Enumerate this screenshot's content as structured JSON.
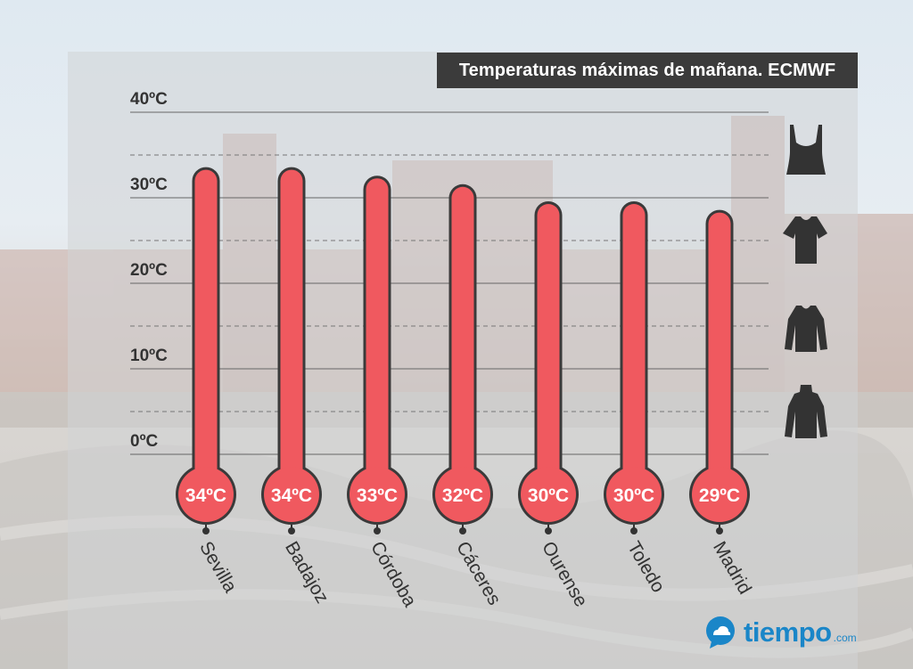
{
  "chart_data": {
    "type": "bar",
    "title": "Temperaturas máximas de mañana. ECMWF",
    "categories": [
      "Sevilla",
      "Badajoz",
      "Córdoba",
      "Cáceres",
      "Ourense",
      "Toledo",
      "Madrid"
    ],
    "values": [
      34,
      34,
      33,
      32,
      30,
      30,
      29
    ],
    "value_labels": [
      "34ºC",
      "34ºC",
      "33ºC",
      "32ºC",
      "30ºC",
      "30ºC",
      "29ºC"
    ],
    "yticks": [
      40,
      30,
      20,
      10,
      0
    ],
    "ytick_labels": [
      "40ºC",
      "30ºC",
      "20ºC",
      "10ºC",
      "0ºC"
    ],
    "ylim": [
      0,
      40
    ],
    "dashed_levels": [
      35,
      25,
      15,
      5
    ],
    "unit": "ºC",
    "clothing_icons": [
      "tank-top-icon",
      "tshirt-icon",
      "long-sleeve-icon",
      "turtleneck-icon"
    ]
  },
  "branding": {
    "name": "tiempo",
    "domain": ".com"
  },
  "colors": {
    "bar_fill": "#f0595f",
    "bar_outline": "#3a3a3a",
    "panel": "#d2d4d6",
    "title_bg": "#3b3b3b",
    "brand": "#1a86c8",
    "icon": "#333333"
  }
}
